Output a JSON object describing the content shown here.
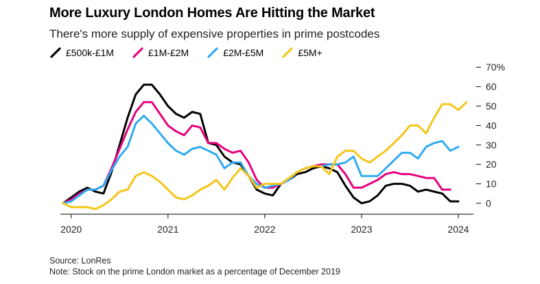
{
  "title": "More Luxury London Homes Are Hitting the Market",
  "subtitle": "There's more supply of expensive properties in prime postcodes",
  "source": "Source: LonRes",
  "note": "Note: Stock on the prime London market as a percentage of December 2019",
  "chart_data": {
    "type": "line",
    "x_start": "2019-12",
    "x_step": "month",
    "x_tick_labels": [
      "2020",
      "2021",
      "2022",
      "2023",
      "2024"
    ],
    "y_tick_labels": [
      "0",
      "10",
      "20",
      "30",
      "40",
      "50",
      "60",
      "70%"
    ],
    "ylim": [
      -5,
      72
    ],
    "grid": false,
    "legend_position": "top",
    "series": [
      {
        "name": "£500k-£1M",
        "color": "#000000",
        "values": [
          0,
          3,
          6,
          8,
          6,
          5,
          16,
          30,
          44,
          56,
          61,
          61,
          56,
          50,
          46,
          44,
          47,
          46,
          31,
          30,
          24,
          21,
          20,
          14,
          7,
          5,
          4,
          10,
          12,
          15,
          16,
          18,
          19,
          18,
          16,
          9,
          3,
          0,
          1,
          4,
          9,
          10,
          10,
          9,
          6,
          7,
          6,
          5,
          1,
          1
        ]
      },
      {
        "name": "£1M-£2M",
        "color": "#e5007d",
        "values": [
          0,
          2,
          5,
          7,
          7,
          9,
          18,
          28,
          38,
          47,
          52,
          52,
          46,
          40,
          37,
          35,
          40,
          39,
          31,
          31,
          28,
          26,
          27,
          21,
          12,
          8,
          8,
          10,
          12,
          16,
          18,
          19,
          20,
          20,
          20,
          15,
          8,
          8,
          10,
          12,
          15,
          16,
          15,
          15,
          14,
          13,
          13,
          7,
          7
        ]
      },
      {
        "name": "£2M-£5M",
        "color": "#2eaaf0",
        "values": [
          0,
          1,
          4,
          7,
          7,
          9,
          17,
          24,
          29,
          41,
          45,
          41,
          36,
          31,
          27,
          25,
          28,
          29,
          27,
          25,
          18,
          21,
          21,
          14,
          10,
          8,
          9,
          10,
          12,
          16,
          18,
          19,
          19,
          20,
          20,
          21,
          24,
          14,
          14,
          14,
          18,
          22,
          26,
          26,
          23,
          29,
          31,
          32,
          27,
          29
        ]
      },
      {
        "name": "£5M+",
        "color": "#f5c518",
        "values": [
          0,
          -2,
          -2,
          -2,
          -3,
          -1,
          2,
          6,
          7,
          14,
          16,
          14,
          11,
          7,
          3,
          2,
          4,
          7,
          9,
          12,
          7,
          13,
          18,
          14,
          8,
          10,
          10,
          10,
          13,
          16,
          18,
          19,
          19,
          15,
          24,
          27,
          27,
          23,
          21,
          24,
          27,
          31,
          35,
          40,
          40,
          36,
          44,
          51,
          51,
          48,
          52
        ]
      }
    ]
  }
}
